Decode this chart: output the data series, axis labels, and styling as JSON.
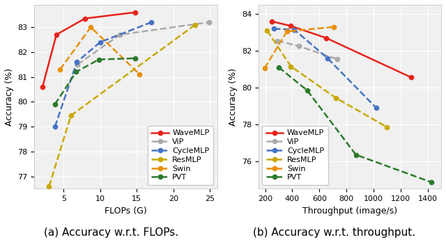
{
  "left": {
    "title": "(a) Accuracy w.r.t. FLOPs.",
    "xlabel": "FLOPs (G)",
    "ylabel": "Accuracy (%)",
    "xlim": [
      1,
      26
    ],
    "ylim": [
      76.5,
      83.9
    ],
    "yticks": [
      77,
      78,
      79,
      80,
      81,
      82,
      83
    ],
    "xticks": [
      5,
      10,
      15,
      20,
      25
    ],
    "series": [
      {
        "label": "WaveMLP",
        "x": [
          2.1,
          4.0,
          7.9,
          14.8
        ],
        "y": [
          80.6,
          82.7,
          83.35,
          83.6
        ],
        "color": "#e8221a",
        "linestyle": "-",
        "marker": "o",
        "markersize": 4.5,
        "linewidth": 1.8,
        "dashed": false
      },
      {
        "label": "ViP",
        "x": [
          6.9,
          12.7,
          24.9
        ],
        "y": [
          81.5,
          82.7,
          83.2
        ],
        "color": "#aaaaaa",
        "linestyle": "--",
        "marker": "o",
        "markersize": 4.5,
        "linewidth": 1.8,
        "dashed": true
      },
      {
        "label": "CycleMLP",
        "x": [
          3.8,
          6.8,
          10.0,
          17.0
        ],
        "y": [
          79.0,
          81.6,
          82.4,
          83.2
        ],
        "color": "#4472c4",
        "linestyle": "--",
        "marker": "o",
        "markersize": 4.5,
        "linewidth": 1.8,
        "dashed": true
      },
      {
        "label": "ResMLP",
        "x": [
          3.0,
          6.0,
          23.0
        ],
        "y": [
          76.6,
          79.45,
          83.1
        ],
        "color": "#c8a800",
        "linestyle": "--",
        "marker": "o",
        "markersize": 4.5,
        "linewidth": 1.8,
        "dashed": true
      },
      {
        "label": "Swin",
        "x": [
          4.5,
          8.7,
          15.4
        ],
        "y": [
          81.3,
          83.0,
          81.1
        ],
        "color": "#e8900a",
        "linestyle": "--",
        "marker": "o",
        "markersize": 4.5,
        "linewidth": 1.8,
        "dashed": true
      },
      {
        "label": "PVT",
        "x": [
          3.8,
          6.7,
          9.8,
          14.8
        ],
        "y": [
          79.9,
          81.2,
          81.7,
          81.75
        ],
        "color": "#2a7a2a",
        "linestyle": "--",
        "marker": "o",
        "markersize": 4.5,
        "linewidth": 1.8,
        "dashed": true
      }
    ],
    "legend_loc": "lower right"
  },
  "right": {
    "title": "(b) Accuracy w.r.t. throughput.",
    "xlabel": "Throughput (image/s)",
    "ylabel": "Accuracy (%)",
    "xlim": [
      150,
      1500
    ],
    "ylim": [
      74.5,
      84.5
    ],
    "yticks": [
      76,
      78,
      80,
      82,
      84
    ],
    "xticks": [
      200,
      400,
      600,
      800,
      1000,
      1200,
      1400
    ],
    "series": [
      {
        "label": "WaveMLP",
        "x": [
          250,
          390,
          650,
          1280
        ],
        "y": [
          83.6,
          83.35,
          82.7,
          80.55
        ],
        "color": "#e8221a",
        "linestyle": "-",
        "marker": "o",
        "markersize": 4.5,
        "linewidth": 1.8,
        "dashed": false
      },
      {
        "label": "ViP",
        "x": [
          290,
          450,
          730
        ],
        "y": [
          82.55,
          82.25,
          81.55
        ],
        "color": "#aaaaaa",
        "linestyle": "--",
        "marker": "o",
        "markersize": 4.5,
        "linewidth": 1.8,
        "dashed": true
      },
      {
        "label": "CycleMLP",
        "x": [
          265,
          415,
          660,
          1020
        ],
        "y": [
          83.2,
          83.15,
          81.6,
          78.9
        ],
        "color": "#4472c4",
        "linestyle": "--",
        "marker": "o",
        "markersize": 4.5,
        "linewidth": 1.8,
        "dashed": true
      },
      {
        "label": "ResMLP",
        "x": [
          215,
          390,
          720,
          1100
        ],
        "y": [
          83.1,
          81.15,
          79.45,
          77.85
        ],
        "color": "#c8a800",
        "linestyle": "--",
        "marker": "o",
        "markersize": 4.5,
        "linewidth": 1.8,
        "dashed": true
      },
      {
        "label": "Swin",
        "x": [
          195,
          360,
          705
        ],
        "y": [
          81.05,
          83.05,
          83.3
        ],
        "color": "#e8900a",
        "linestyle": "--",
        "marker": "o",
        "markersize": 4.5,
        "linewidth": 1.8,
        "dashed": true
      },
      {
        "label": "PVT",
        "x": [
          300,
          510,
          870,
          1430
        ],
        "y": [
          81.1,
          79.85,
          76.35,
          74.85
        ],
        "color": "#2a7a2a",
        "linestyle": "--",
        "marker": "o",
        "markersize": 4.5,
        "linewidth": 1.8,
        "dashed": true
      }
    ],
    "legend_loc": "lower left"
  },
  "background_color": "#f0f0f0",
  "grid_color": "#ffffff",
  "fig_width": 6.4,
  "fig_height": 3.48,
  "caption_fontsize": 11,
  "tick_fontsize": 8,
  "label_fontsize": 9,
  "legend_fontsize": 8
}
